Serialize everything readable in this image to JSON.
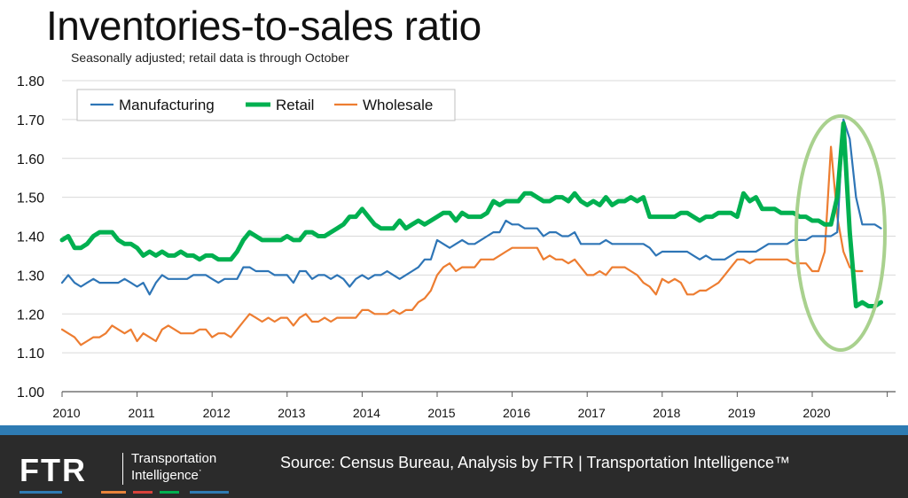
{
  "title": "Inventories-to-sales ratio",
  "subtitle": "Seasonally adjusted; retail data is through October",
  "footer": {
    "logo_text": "FTR",
    "logo_tag_line1": "Transportation",
    "logo_tag_line2": "Intelligence˙",
    "source": "Source: Census Bureau, Analysis by FTR | Transportation Intelligence™",
    "brand_colors": [
      "#2e7bb3",
      "#e8833a",
      "#d8423a",
      "#00b050",
      "#2e7bb3"
    ]
  },
  "chart_data": {
    "type": "line",
    "title": "Inventories-to-sales ratio",
    "subtitle": "Seasonally adjusted; retail data is through October",
    "xlabel": "",
    "ylabel": "",
    "ylim": [
      1.0,
      1.8
    ],
    "yticks": [
      "1.00",
      "1.10",
      "1.20",
      "1.30",
      "1.40",
      "1.50",
      "1.60",
      "1.70",
      "1.80"
    ],
    "xticks": [
      "2010",
      "2011",
      "2012",
      "2013",
      "2014",
      "2015",
      "2016",
      "2017",
      "2018",
      "2019",
      "2020"
    ],
    "x_start": "2010-01",
    "x_frequency": "monthly",
    "legend_position": "top-left",
    "grid": "horizontal",
    "series": [
      {
        "name": "Manufacturing",
        "color": "#2e75b6",
        "values": [
          1.28,
          1.3,
          1.28,
          1.27,
          1.28,
          1.29,
          1.28,
          1.28,
          1.28,
          1.28,
          1.29,
          1.28,
          1.27,
          1.28,
          1.25,
          1.28,
          1.3,
          1.29,
          1.29,
          1.29,
          1.29,
          1.3,
          1.3,
          1.3,
          1.29,
          1.28,
          1.29,
          1.29,
          1.29,
          1.32,
          1.32,
          1.31,
          1.31,
          1.31,
          1.3,
          1.3,
          1.3,
          1.28,
          1.31,
          1.31,
          1.29,
          1.3,
          1.3,
          1.29,
          1.3,
          1.29,
          1.27,
          1.29,
          1.3,
          1.29,
          1.3,
          1.3,
          1.31,
          1.3,
          1.29,
          1.3,
          1.31,
          1.32,
          1.34,
          1.34,
          1.39,
          1.38,
          1.37,
          1.38,
          1.39,
          1.38,
          1.38,
          1.39,
          1.4,
          1.41,
          1.41,
          1.44,
          1.43,
          1.43,
          1.42,
          1.42,
          1.42,
          1.4,
          1.41,
          1.41,
          1.4,
          1.4,
          1.41,
          1.38,
          1.38,
          1.38,
          1.38,
          1.39,
          1.38,
          1.38,
          1.38,
          1.38,
          1.38,
          1.38,
          1.37,
          1.35,
          1.36,
          1.36,
          1.36,
          1.36,
          1.36,
          1.35,
          1.34,
          1.35,
          1.34,
          1.34,
          1.34,
          1.35,
          1.36,
          1.36,
          1.36,
          1.36,
          1.37,
          1.38,
          1.38,
          1.38,
          1.38,
          1.39,
          1.39,
          1.39,
          1.4,
          1.4,
          1.4,
          1.4,
          1.41,
          1.7,
          1.65,
          1.5,
          1.43,
          1.43,
          1.43,
          1.42
        ]
      },
      {
        "name": "Retail",
        "color": "#00b050",
        "values": [
          1.39,
          1.4,
          1.37,
          1.37,
          1.38,
          1.4,
          1.41,
          1.41,
          1.41,
          1.39,
          1.38,
          1.38,
          1.37,
          1.35,
          1.36,
          1.35,
          1.36,
          1.35,
          1.35,
          1.36,
          1.35,
          1.35,
          1.34,
          1.35,
          1.35,
          1.34,
          1.34,
          1.34,
          1.36,
          1.39,
          1.41,
          1.4,
          1.39,
          1.39,
          1.39,
          1.39,
          1.4,
          1.39,
          1.39,
          1.41,
          1.41,
          1.4,
          1.4,
          1.41,
          1.42,
          1.43,
          1.45,
          1.45,
          1.47,
          1.45,
          1.43,
          1.42,
          1.42,
          1.42,
          1.44,
          1.42,
          1.43,
          1.44,
          1.43,
          1.44,
          1.45,
          1.46,
          1.46,
          1.44,
          1.46,
          1.45,
          1.45,
          1.45,
          1.46,
          1.49,
          1.48,
          1.49,
          1.49,
          1.49,
          1.51,
          1.51,
          1.5,
          1.49,
          1.49,
          1.5,
          1.5,
          1.49,
          1.51,
          1.49,
          1.48,
          1.49,
          1.48,
          1.5,
          1.48,
          1.49,
          1.49,
          1.5,
          1.49,
          1.5,
          1.45,
          1.45,
          1.45,
          1.45,
          1.45,
          1.46,
          1.46,
          1.45,
          1.44,
          1.45,
          1.45,
          1.46,
          1.46,
          1.46,
          1.45,
          1.51,
          1.49,
          1.5,
          1.47,
          1.47,
          1.47,
          1.46,
          1.46,
          1.46,
          1.45,
          1.45,
          1.44,
          1.44,
          1.43,
          1.43,
          1.5,
          1.69,
          1.41,
          1.22,
          1.23,
          1.22,
          1.22,
          1.23
        ]
      },
      {
        "name": "Wholesale",
        "color": "#ed7d31",
        "values": [
          1.16,
          1.15,
          1.14,
          1.12,
          1.13,
          1.14,
          1.14,
          1.15,
          1.17,
          1.16,
          1.15,
          1.16,
          1.13,
          1.15,
          1.14,
          1.13,
          1.16,
          1.17,
          1.16,
          1.15,
          1.15,
          1.15,
          1.16,
          1.16,
          1.14,
          1.15,
          1.15,
          1.14,
          1.16,
          1.18,
          1.2,
          1.19,
          1.18,
          1.19,
          1.18,
          1.19,
          1.19,
          1.17,
          1.19,
          1.2,
          1.18,
          1.18,
          1.19,
          1.18,
          1.19,
          1.19,
          1.19,
          1.19,
          1.21,
          1.21,
          1.2,
          1.2,
          1.2,
          1.21,
          1.2,
          1.21,
          1.21,
          1.23,
          1.24,
          1.26,
          1.3,
          1.32,
          1.33,
          1.31,
          1.32,
          1.32,
          1.32,
          1.34,
          1.34,
          1.34,
          1.35,
          1.36,
          1.37,
          1.37,
          1.37,
          1.37,
          1.37,
          1.34,
          1.35,
          1.34,
          1.34,
          1.33,
          1.34,
          1.32,
          1.3,
          1.3,
          1.31,
          1.3,
          1.32,
          1.32,
          1.32,
          1.31,
          1.3,
          1.28,
          1.27,
          1.25,
          1.29,
          1.28,
          1.29,
          1.28,
          1.25,
          1.25,
          1.26,
          1.26,
          1.27,
          1.28,
          1.3,
          1.32,
          1.34,
          1.34,
          1.33,
          1.34,
          1.34,
          1.34,
          1.34,
          1.34,
          1.34,
          1.33,
          1.33,
          1.33,
          1.31,
          1.31,
          1.36,
          1.63,
          1.45,
          1.36,
          1.32,
          1.31,
          1.31
        ]
      }
    ],
    "annotations": [
      {
        "type": "ellipse",
        "label": "",
        "color": "#a9d18e"
      }
    ]
  }
}
